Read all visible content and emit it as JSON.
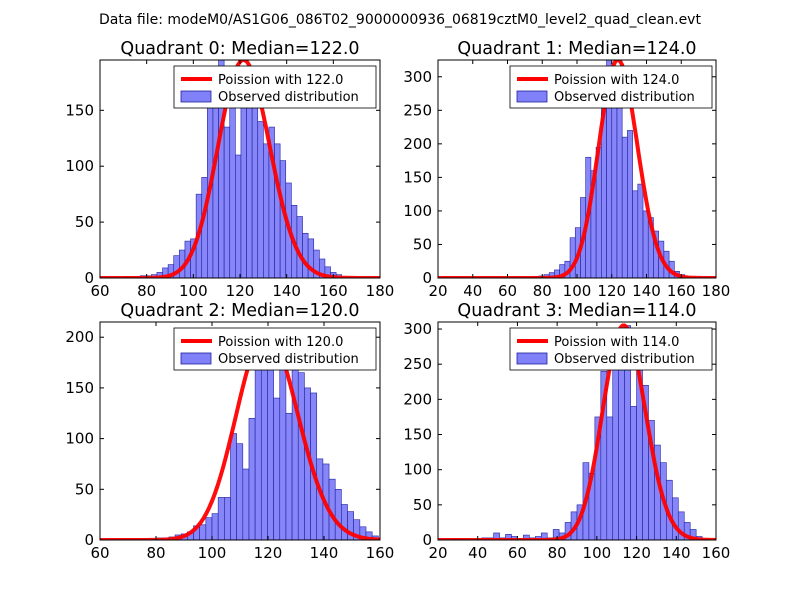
{
  "figure": {
    "suptitle": "Data file: modeM0/AS1G06_086T02_9000000936_06819cztM0_level2_quad_clean.evt"
  },
  "colors": {
    "poisson": "#ff0000",
    "bar_fill": "#8080f8",
    "bar_edge": "#2020a0",
    "axes": "#000000"
  },
  "chart_data": [
    {
      "type": "bar",
      "title": "Quadrant 0: Median=122.0",
      "median": 122.0,
      "xlim": [
        60,
        180
      ],
      "ylim": [
        0,
        195
      ],
      "xticks": [
        60,
        80,
        100,
        120,
        140,
        160,
        180
      ],
      "yticks": [
        0,
        50,
        100,
        150
      ],
      "legend": {
        "loc": "upper right",
        "entries": [
          "Poission with 122.0",
          "Observed distribution"
        ]
      },
      "bin_width": 2.4,
      "bins_start": [
        70.0,
        72.4,
        74.8,
        77.2,
        79.6,
        82.0,
        84.4,
        86.8,
        89.2,
        91.6,
        94.0,
        96.4,
        98.8,
        101.2,
        103.6,
        106.0,
        108.4,
        110.8,
        113.2,
        115.6,
        118.0,
        120.4,
        122.8,
        125.2,
        127.6,
        130.0,
        132.4,
        134.8,
        137.2,
        139.6,
        142.0,
        144.4,
        146.8,
        149.2,
        151.6,
        154.0,
        156.4,
        158.8,
        161.2
      ],
      "counts": [
        1,
        1,
        1,
        2,
        2,
        3,
        5,
        9,
        12,
        20,
        25,
        33,
        35,
        75,
        90,
        160,
        180,
        195,
        135,
        185,
        110,
        160,
        175,
        160,
        140,
        120,
        135,
        120,
        105,
        85,
        65,
        55,
        40,
        35,
        25,
        17,
        10,
        5,
        3
      ]
    },
    {
      "type": "bar",
      "title": "Quadrant 1: Median=124.0",
      "median": 124.0,
      "xlim": [
        20,
        180
      ],
      "ylim": [
        0,
        325
      ],
      "xticks": [
        20,
        40,
        60,
        80,
        100,
        120,
        140,
        160,
        180
      ],
      "yticks": [
        0,
        50,
        100,
        150,
        200,
        250,
        300
      ],
      "legend": {
        "loc": "upper right",
        "entries": [
          "Poission with 124.0",
          "Observed distribution"
        ]
      },
      "bin_width": 3,
      "bins_start": [
        30,
        33,
        36,
        39,
        42,
        45,
        48,
        51,
        54,
        57,
        60,
        63,
        66,
        69,
        72,
        75,
        78,
        81,
        84,
        87,
        90,
        93,
        96,
        99,
        102,
        105,
        108,
        111,
        114,
        117,
        120,
        123,
        126,
        129,
        132,
        135,
        138,
        141,
        144,
        147,
        150,
        153,
        156,
        159,
        162,
        165
      ],
      "counts": [
        1,
        1,
        0,
        0,
        1,
        0,
        0,
        0,
        1,
        0,
        0,
        0,
        0,
        1,
        1,
        2,
        3,
        5,
        8,
        12,
        20,
        25,
        60,
        75,
        120,
        180,
        160,
        195,
        280,
        325,
        300,
        275,
        210,
        220,
        130,
        140,
        100,
        90,
        70,
        55,
        40,
        25,
        10,
        5,
        2,
        1
      ]
    },
    {
      "type": "bar",
      "title": "Quadrant 2: Median=120.0",
      "median": 120.0,
      "xlim": [
        60,
        160
      ],
      "ylim": [
        0,
        215
      ],
      "xticks": [
        60,
        80,
        100,
        120,
        140,
        160
      ],
      "yticks": [
        0,
        50,
        100,
        150,
        200
      ],
      "legend": {
        "loc": "upper right",
        "entries": [
          "Poission with 120.0",
          "Observed distribution"
        ]
      },
      "bin_width": 2.2,
      "bins_start": [
        67.0,
        69.2,
        71.4,
        73.6,
        75.8,
        78.0,
        80.2,
        82.4,
        84.6,
        86.8,
        89.0,
        91.2,
        93.4,
        95.6,
        97.8,
        100.0,
        102.2,
        104.4,
        106.6,
        108.8,
        111.0,
        113.2,
        115.4,
        117.6,
        119.8,
        122.0,
        124.2,
        126.4,
        128.6,
        130.8,
        133.0,
        135.2,
        137.4,
        139.6,
        141.8,
        144.0,
        146.2,
        148.4,
        150.6,
        152.8,
        155.0,
        157.2
      ],
      "counts": [
        1,
        1,
        1,
        1,
        1,
        1,
        2,
        2,
        3,
        5,
        6,
        8,
        14,
        15,
        22,
        26,
        42,
        42,
        105,
        95,
        70,
        120,
        180,
        180,
        200,
        140,
        180,
        125,
        205,
        165,
        150,
        145,
        80,
        75,
        60,
        50,
        35,
        28,
        20,
        13,
        8,
        4
      ]
    },
    {
      "type": "bar",
      "title": "Quadrant 3: Median=114.0",
      "median": 114.0,
      "xlim": [
        20,
        160
      ],
      "ylim": [
        0,
        310
      ],
      "xticks": [
        20,
        40,
        60,
        80,
        100,
        120,
        140,
        160
      ],
      "yticks": [
        0,
        50,
        100,
        150,
        200,
        250,
        300
      ],
      "legend": {
        "loc": "upper right",
        "entries": [
          "Poission with 114.0",
          "Observed distribution"
        ]
      },
      "bin_width": 3,
      "bins_start": [
        27,
        30,
        33,
        36,
        39,
        42,
        45,
        48,
        51,
        54,
        57,
        60,
        63,
        66,
        69,
        72,
        75,
        78,
        81,
        84,
        87,
        90,
        93,
        96,
        99,
        102,
        105,
        108,
        111,
        114,
        117,
        120,
        123,
        126,
        129,
        132,
        135,
        138,
        141,
        144,
        147,
        150,
        153
      ],
      "counts": [
        1,
        1,
        1,
        1,
        1,
        3,
        3,
        10,
        3,
        8,
        5,
        2,
        7,
        3,
        5,
        10,
        3,
        15,
        10,
        25,
        40,
        50,
        110,
        95,
        175,
        240,
        175,
        275,
        290,
        305,
        190,
        280,
        220,
        170,
        135,
        110,
        85,
        60,
        40,
        25,
        15,
        5,
        1
      ]
    }
  ]
}
